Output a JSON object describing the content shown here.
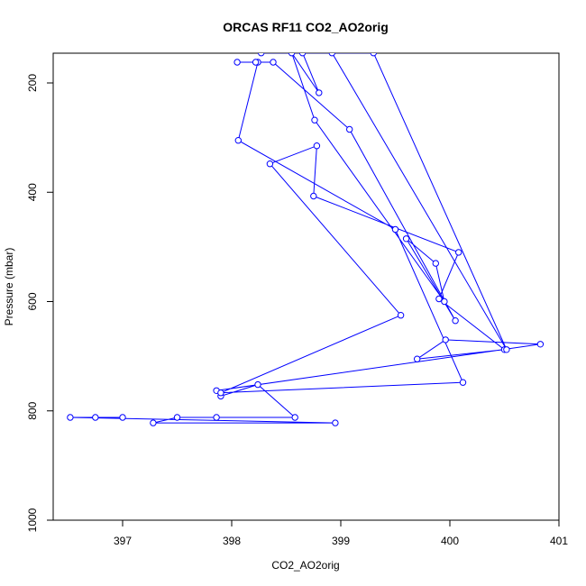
{
  "chart_data": {
    "type": "line",
    "title": "ORCAS RF11 CO2_AO2orig",
    "xlabel": "CO2_AO2orig",
    "ylabel": "Pressure (mbar)",
    "xlim": [
      396.3,
      401.0
    ],
    "ylim": [
      1000,
      145
    ],
    "y_reversed": true,
    "x_ticks": [
      397,
      398,
      399,
      400,
      401
    ],
    "y_ticks": [
      200,
      400,
      600,
      800,
      1000
    ],
    "grid": false,
    "series": [
      {
        "color": "#0000ff",
        "marker": "open-circle",
        "points": [
          [
            397.0,
            812
          ],
          [
            396.75,
            812
          ],
          [
            396.52,
            812
          ],
          [
            398.95,
            822
          ],
          [
            397.28,
            822
          ],
          [
            397.5,
            812
          ],
          [
            397.86,
            812
          ],
          [
            398.58,
            812
          ],
          [
            398.24,
            752
          ],
          [
            397.9,
            773
          ],
          [
            397.86,
            763
          ],
          [
            400.83,
            678
          ],
          [
            399.96,
            670
          ],
          [
            399.7,
            705
          ],
          [
            400.5,
            688
          ],
          [
            399.9,
            595
          ],
          [
            400.08,
            510
          ],
          [
            398.75,
            407
          ],
          [
            398.78,
            315
          ],
          [
            398.35,
            348
          ],
          [
            399.55,
            625
          ],
          [
            397.9,
            767
          ],
          [
            400.12,
            748
          ],
          [
            399.5,
            468
          ],
          [
            398.06,
            305
          ],
          [
            398.24,
            162
          ],
          [
            398.05,
            162
          ],
          [
            398.22,
            162
          ],
          [
            398.38,
            162
          ],
          [
            399.08,
            285
          ],
          [
            400.05,
            635
          ],
          [
            399.6,
            485
          ],
          [
            399.87,
            530
          ],
          [
            399.95,
            600
          ],
          [
            398.76,
            268
          ],
          [
            398.55,
            145
          ],
          [
            398.8,
            218
          ],
          [
            398.65,
            145
          ],
          [
            398.92,
            145
          ],
          [
            400.52,
            688
          ],
          [
            399.3,
            145
          ],
          [
            398.27,
            145
          ]
        ]
      }
    ]
  }
}
